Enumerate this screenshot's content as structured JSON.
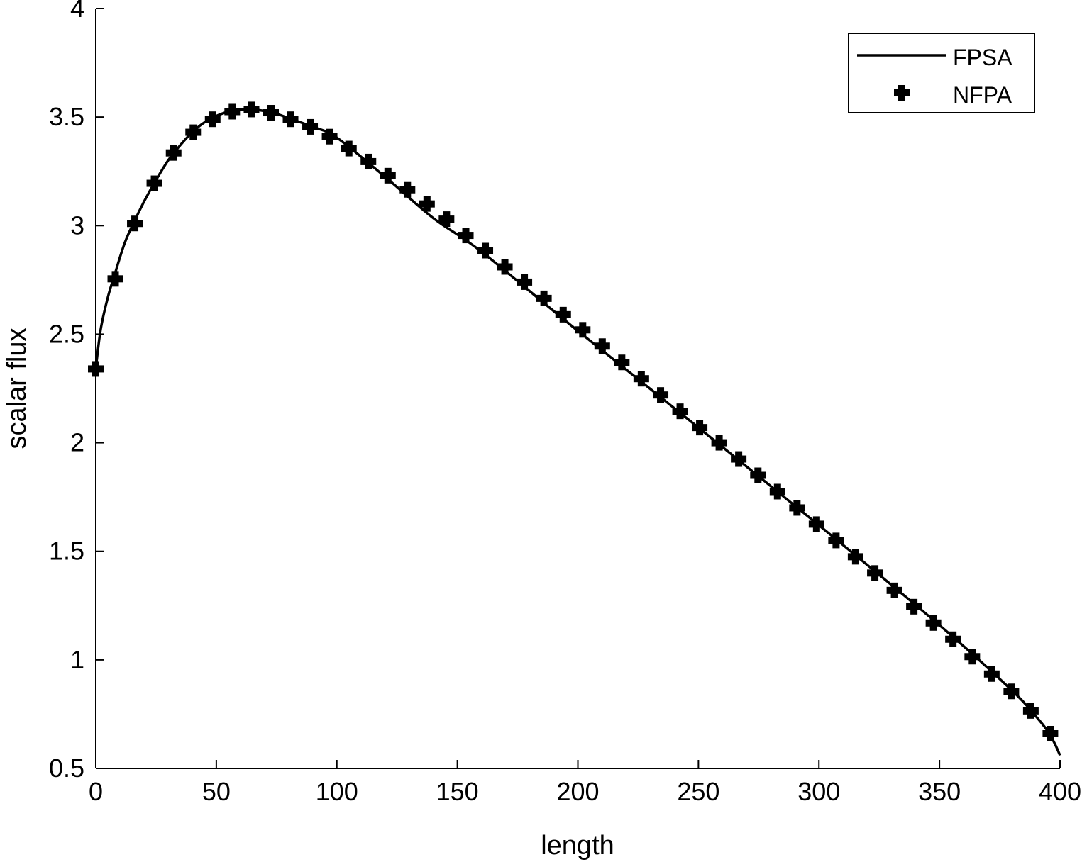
{
  "chart_data": {
    "type": "line",
    "xlabel": "length",
    "ylabel": "scalar flux",
    "xlim": [
      0,
      400
    ],
    "ylim": [
      0.5,
      4
    ],
    "xticks": [
      "0",
      "50",
      "100",
      "150",
      "200",
      "250",
      "300",
      "350",
      "400"
    ],
    "yticks": [
      "0.5",
      "1",
      "1.5",
      "2",
      "2.5",
      "3",
      "3.5",
      "4"
    ],
    "grid": false,
    "legend_position": "top-right",
    "colors": {
      "line": "#000000",
      "marker": "#000000"
    },
    "series": [
      {
        "name": "FPSA",
        "style": "solid-line",
        "x": [
          0,
          2,
          5,
          8,
          12,
          16,
          20,
          25,
          30,
          35,
          40,
          45,
          50,
          55,
          60,
          65,
          70,
          75,
          80,
          90,
          100,
          120,
          140,
          160,
          200,
          250,
          300,
          350,
          380,
          390,
          395,
          398,
          400
        ],
        "y": [
          2.34,
          2.52,
          2.67,
          2.78,
          2.92,
          3.02,
          3.11,
          3.21,
          3.3,
          3.37,
          3.43,
          3.475,
          3.505,
          3.525,
          3.535,
          3.535,
          3.528,
          3.515,
          3.495,
          3.455,
          3.405,
          3.225,
          3.035,
          2.88,
          2.515,
          2.07,
          1.62,
          1.16,
          0.86,
          0.74,
          0.67,
          0.61,
          0.56
        ]
      },
      {
        "name": "NFPA",
        "style": "plus-marker",
        "x": [
          0,
          8.1,
          16.2,
          24.3,
          32.3,
          40.4,
          48.5,
          56.6,
          64.6,
          72.7,
          80.8,
          88.9,
          97.0,
          105.0,
          113.1,
          121.2,
          129.3,
          137.4,
          145.5,
          153.5,
          161.6,
          169.7,
          177.8,
          185.9,
          193.9,
          202.0,
          210.1,
          218.2,
          226.3,
          234.3,
          242.4,
          250.5,
          258.6,
          266.7,
          274.7,
          282.8,
          290.9,
          299.0,
          307.1,
          315.2,
          323.2,
          331.3,
          339.4,
          347.5,
          355.6,
          363.6,
          371.7,
          379.8,
          387.9,
          396.0
        ],
        "y": [
          2.34,
          2.755,
          3.01,
          3.195,
          3.335,
          3.43,
          3.49,
          3.525,
          3.535,
          3.52,
          3.49,
          3.455,
          3.41,
          3.355,
          3.295,
          3.23,
          3.165,
          3.1,
          3.03,
          2.955,
          2.885,
          2.81,
          2.74,
          2.665,
          2.59,
          2.52,
          2.445,
          2.37,
          2.295,
          2.22,
          2.145,
          2.07,
          2.0,
          1.925,
          1.85,
          1.775,
          1.7,
          1.625,
          1.55,
          1.475,
          1.4,
          1.32,
          1.245,
          1.17,
          1.095,
          1.015,
          0.935,
          0.855,
          0.765,
          0.66
        ]
      }
    ]
  }
}
